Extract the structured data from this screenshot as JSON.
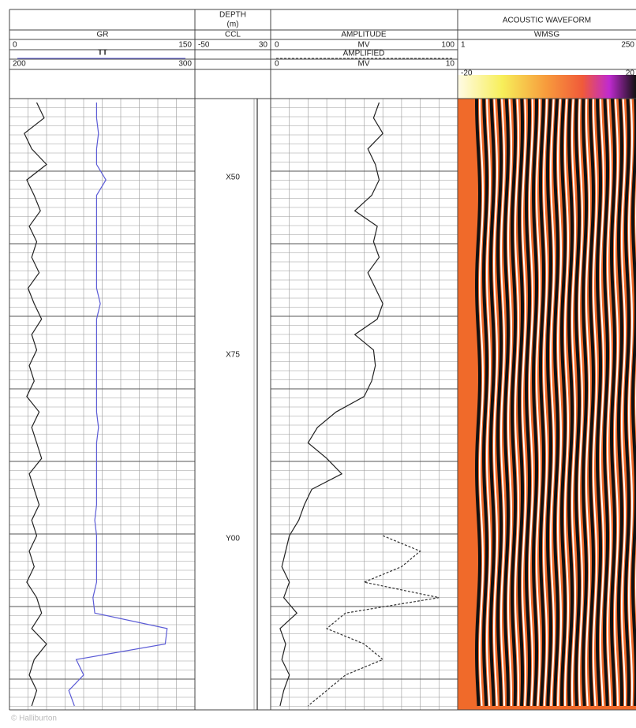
{
  "header": {
    "depth_title": "DEPTH",
    "depth_unit": "(m)",
    "waveform_title": "ACOUSTIC WAVEFORM",
    "gr": "GR",
    "ccl": "CCL",
    "amplitude": "AMPLITUDE",
    "wmsg": "WMSG",
    "gr_min": "0",
    "gr_max": "150",
    "tt": "TT",
    "tt_min": "200",
    "tt_max": "300",
    "ccl_min": "-50",
    "ccl_max": "30",
    "amp_min": "0",
    "amp_unit": "MV",
    "amp_max": "100",
    "amplified": "AMPLIFIED",
    "ampd_min": "0",
    "ampd_unit": "MV",
    "ampd_max": "10",
    "wmsg_min": "1",
    "wmsg_max": "250",
    "color_min": "-20",
    "color_max": "20"
  },
  "depths": {
    "labels": [
      "X50",
      "X75",
      "Y00"
    ]
  },
  "tracks": {
    "gr": {
      "color": "#222",
      "values": [
        22,
        28,
        12,
        18,
        30,
        14,
        20,
        25,
        16,
        22,
        18,
        24,
        15,
        20,
        26,
        18,
        22,
        16,
        20,
        14,
        24,
        18,
        22,
        26,
        16,
        20,
        24,
        18,
        22,
        16,
        20,
        14,
        22,
        26,
        18,
        30,
        20,
        16,
        22,
        18
      ]
    },
    "tt": {
      "color": "#5b5bd6",
      "values": [
        247,
        247,
        248,
        247,
        247,
        252,
        247,
        247,
        247,
        247,
        247,
        247,
        247,
        249,
        247,
        247,
        247,
        247,
        247,
        247,
        247,
        248,
        247,
        247,
        247,
        247,
        247,
        246,
        247,
        247,
        247,
        247,
        245,
        246,
        285,
        284,
        236,
        240,
        232,
        235
      ]
    },
    "amplitude": {
      "color": "#222",
      "values": [
        58,
        55,
        60,
        52,
        56,
        58,
        54,
        45,
        57,
        55,
        58,
        52,
        56,
        60,
        57,
        45,
        55,
        56,
        54,
        50,
        35,
        25,
        20,
        30,
        38,
        22,
        18,
        15,
        10,
        8,
        6,
        10,
        7,
        14,
        5,
        8,
        6,
        10,
        7,
        5
      ]
    },
    "amplified": {
      "color": "#333",
      "values": [
        null,
        null,
        null,
        null,
        null,
        null,
        null,
        null,
        null,
        null,
        null,
        null,
        null,
        null,
        null,
        null,
        null,
        null,
        null,
        null,
        null,
        null,
        null,
        null,
        null,
        null,
        null,
        null,
        6,
        8,
        7,
        5,
        9,
        4,
        3,
        5,
        6,
        4,
        3,
        2
      ]
    }
  },
  "footer": "© Halliburton"
}
